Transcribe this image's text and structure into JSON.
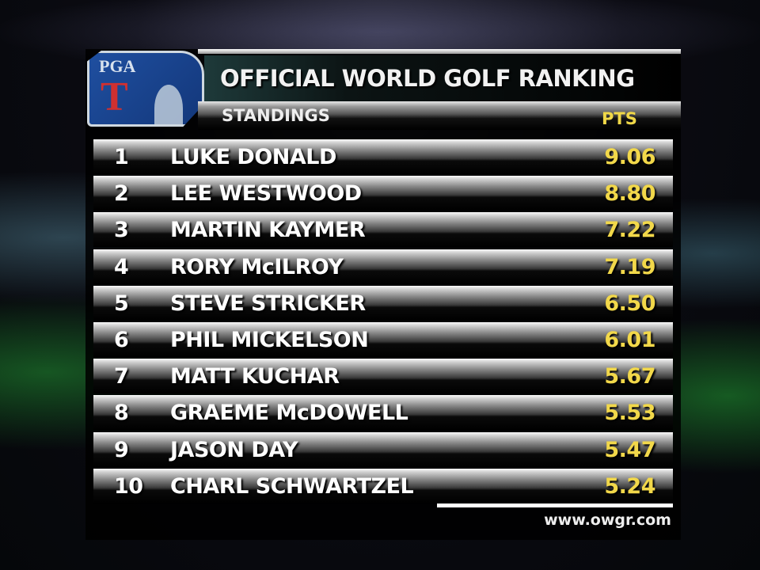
{
  "logo": {
    "text": "PGA T"
  },
  "header": {
    "title": "OFFICIAL WORLD GOLF RANKING",
    "subtitle": "STANDINGS",
    "pts_label": "PTS"
  },
  "colors": {
    "points": "#f2d84a",
    "text": "#ffffff"
  },
  "rows": [
    {
      "rank": "1",
      "name": "LUKE DONALD",
      "pts": "9.06"
    },
    {
      "rank": "2",
      "name": "LEE WESTWOOD",
      "pts": "8.80"
    },
    {
      "rank": "3",
      "name": "MARTIN KAYMER",
      "pts": "7.22"
    },
    {
      "rank": "4",
      "name": "RORY McILROY",
      "pts": "7.19"
    },
    {
      "rank": "5",
      "name": "STEVE STRICKER",
      "pts": "6.50"
    },
    {
      "rank": "6",
      "name": "PHIL MICKELSON",
      "pts": "6.01"
    },
    {
      "rank": "7",
      "name": "MATT KUCHAR",
      "pts": "5.67"
    },
    {
      "rank": "8",
      "name": "GRAEME McDOWELL",
      "pts": "5.53"
    },
    {
      "rank": "9",
      "name": "JASON DAY",
      "pts": "5.47"
    },
    {
      "rank": "10",
      "name": "CHARL SCHWARTZEL",
      "pts": "5.24"
    }
  ],
  "footer": {
    "url": "www.owgr.com"
  }
}
